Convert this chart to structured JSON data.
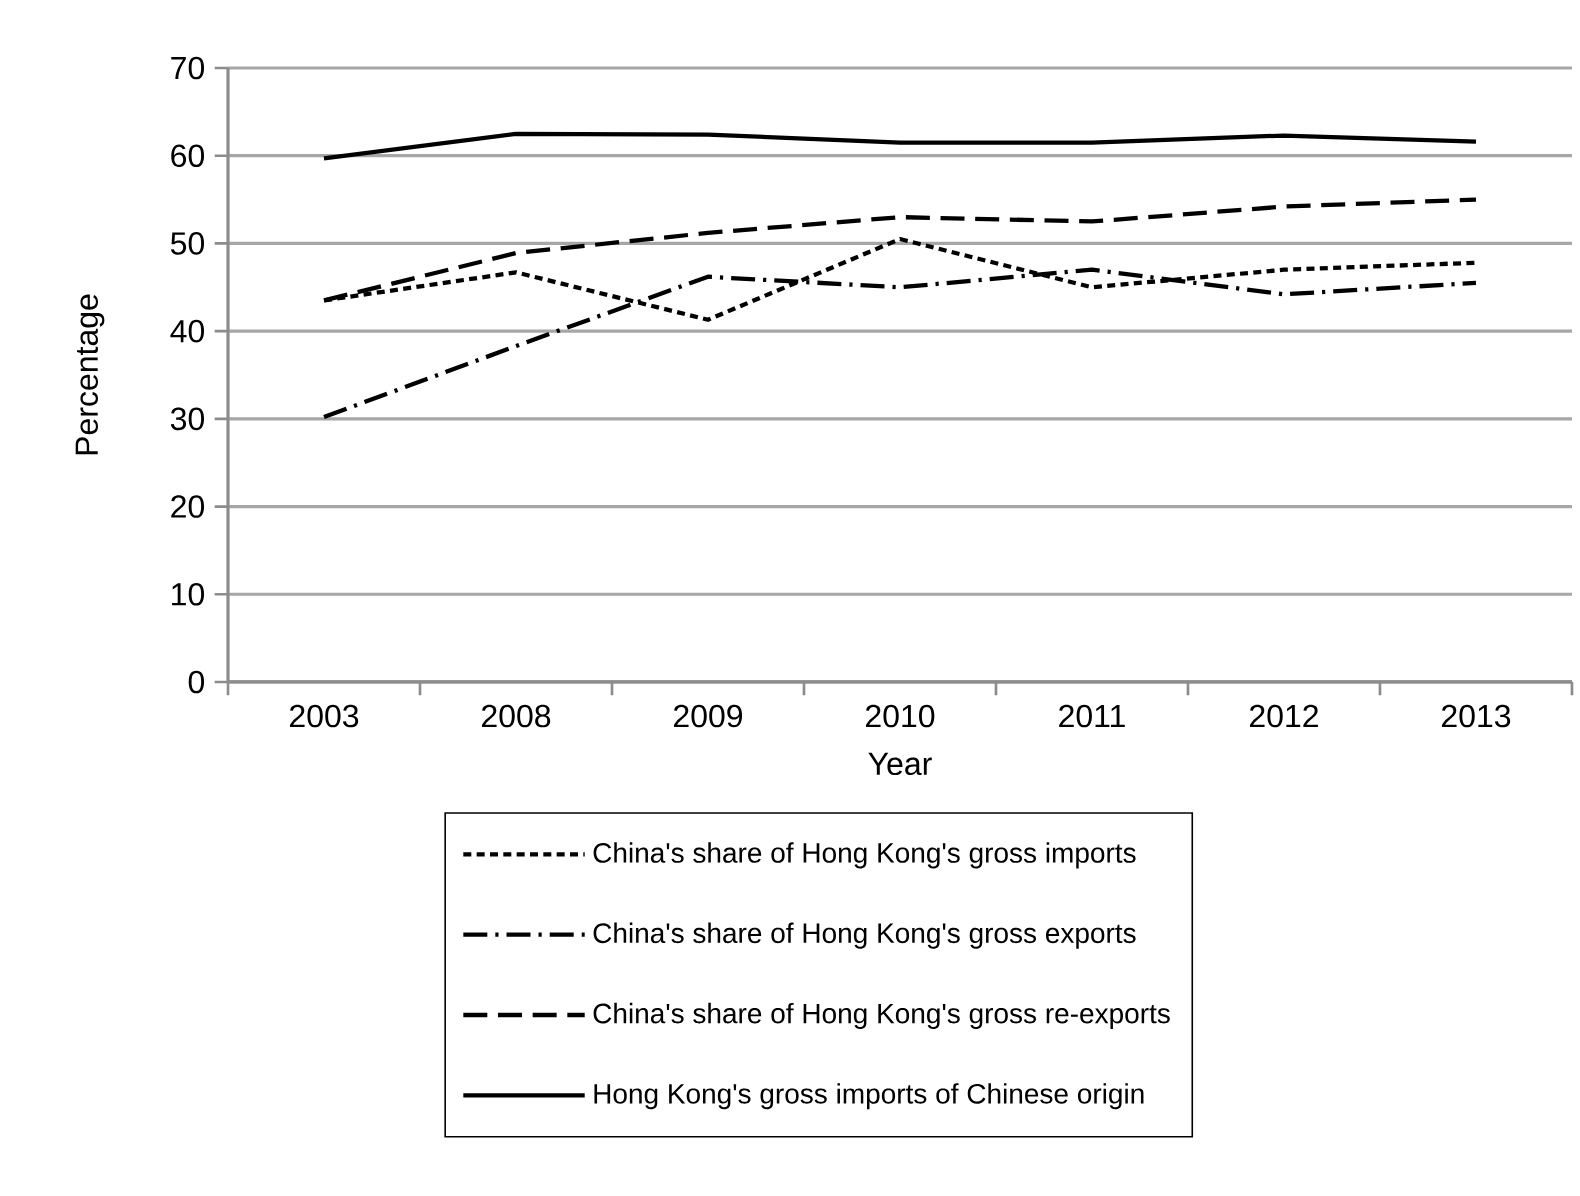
{
  "chart_data": {
    "type": "line",
    "xlabel": "Year",
    "ylabel": "Percentage",
    "categories": [
      "2003",
      "2008",
      "2009",
      "2010",
      "2011",
      "2012",
      "2013"
    ],
    "series": [
      {
        "name": "China's share of Hong Kong's gross imports",
        "color": "#000000",
        "line_style": "dotted",
        "values": [
          43.5,
          46.7,
          41.3,
          50.5,
          45.0,
          47.0,
          47.8
        ]
      },
      {
        "name": "China's share of Hong Kong's gross exports",
        "color": "#000000",
        "line_style": "dashdot",
        "values": [
          30.2,
          38.3,
          46.2,
          45.0,
          47.0,
          44.2,
          45.5
        ]
      },
      {
        "name": "China's share of Hong Kong's gross re-exports",
        "color": "#000000",
        "line_style": "dashed",
        "values": [
          43.5,
          48.9,
          51.2,
          53.0,
          52.5,
          54.2,
          55.0
        ]
      },
      {
        "name": "Hong Kong's gross imports of Chinese origin",
        "color": "#000000",
        "line_style": "solid",
        "values": [
          59.7,
          62.5,
          62.4,
          61.5,
          61.5,
          62.3,
          61.6
        ]
      }
    ],
    "ylim": [
      0,
      70
    ],
    "yticks": [
      0,
      10,
      20,
      30,
      40,
      50,
      60,
      70
    ],
    "grid": "y",
    "legend": "bottom",
    "marker": "none"
  }
}
